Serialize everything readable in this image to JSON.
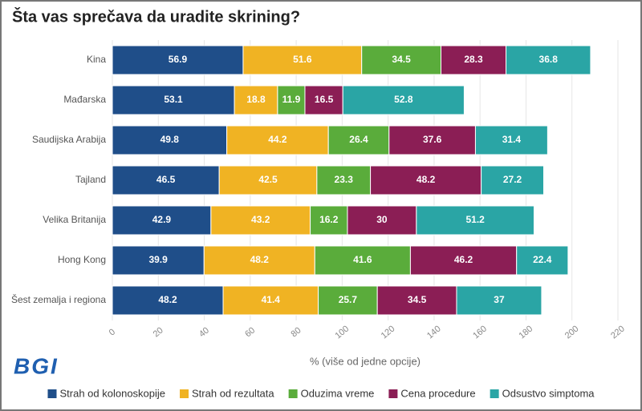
{
  "chart_data": {
    "type": "stacked-bar-horizontal",
    "title": "Šta vas sprečava da uradite skrining?",
    "x_label": "% (više od jedne opcije)",
    "logo": "BGI",
    "categories": [
      "Kina",
      "Mađarska",
      "Saudijska Arabija",
      "Tajland",
      "Velika Britanija",
      "Hong Kong",
      "Šest zemalja i regiona"
    ],
    "series": [
      {
        "name": "Strah od kolonoskopije",
        "color": "#1f4e89",
        "values": [
          56.9,
          53.1,
          49.8,
          46.5,
          42.9,
          39.9,
          48.2
        ]
      },
      {
        "name": "Strah od rezultata",
        "color": "#f0b323",
        "values": [
          51.6,
          18.8,
          44.2,
          42.5,
          43.2,
          48.2,
          41.4
        ]
      },
      {
        "name": "Oduzima vreme",
        "color": "#5aac3b",
        "values": [
          34.5,
          11.9,
          26.4,
          23.3,
          16.2,
          41.6,
          25.7
        ]
      },
      {
        "name": "Cena procedure",
        "color": "#8b1e55",
        "values": [
          28.3,
          16.5,
          37.6,
          48.2,
          30,
          46.2,
          34.5
        ]
      },
      {
        "name": "Odsustvo simptoma",
        "color": "#2aa5a5",
        "values": [
          36.8,
          52.8,
          31.4,
          27.2,
          51.2,
          22.4,
          37
        ]
      }
    ],
    "xlim": [
      0,
      220
    ],
    "xticks": [
      0,
      20,
      40,
      60,
      80,
      100,
      120,
      140,
      160,
      180,
      200,
      220
    ],
    "grid": true
  }
}
